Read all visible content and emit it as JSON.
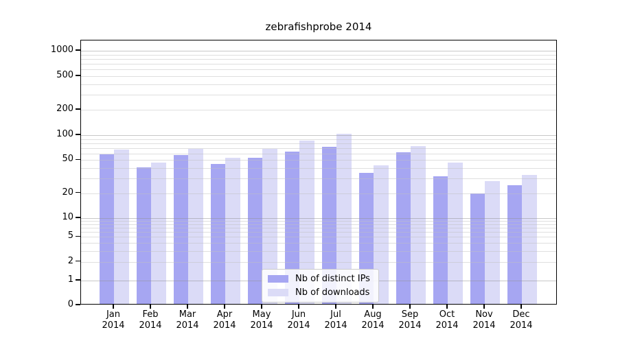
{
  "title": "zebrafishprobe 2014",
  "chart_data": {
    "type": "bar",
    "title": "zebrafishprobe 2014",
    "categories": [
      "Jan 2014",
      "Feb 2014",
      "Mar 2014",
      "Apr 2014",
      "May 2014",
      "Jun 2014",
      "Jul 2014",
      "Aug 2014",
      "Sep 2014",
      "Oct 2014",
      "Nov 2014",
      "Dec 2014"
    ],
    "series": [
      {
        "name": "Nb of distinct IPs",
        "color": "#a6a6f2",
        "values": [
          57,
          39,
          55,
          43,
          51,
          61,
          70,
          34,
          60,
          31,
          19,
          24
        ]
      },
      {
        "name": "Nb of downloads",
        "color": "#dbdbf7",
        "values": [
          64,
          45,
          66,
          51,
          66,
          82,
          100,
          42,
          71,
          45,
          27,
          32
        ]
      }
    ],
    "xlabel": "",
    "ylabel": "",
    "yscale": "symlog",
    "yticks": [
      0,
      1,
      2,
      5,
      10,
      20,
      50,
      100,
      200,
      500,
      1000
    ],
    "ylim": [
      0,
      1300
    ],
    "grid": "horizontal major and minor, drawn over bars",
    "grid_major_color": "#909090",
    "grid_minor_color": "#bfbfbf",
    "legend_position": "lower center",
    "axis_color": "#000000",
    "background_color": "#ffffff"
  }
}
